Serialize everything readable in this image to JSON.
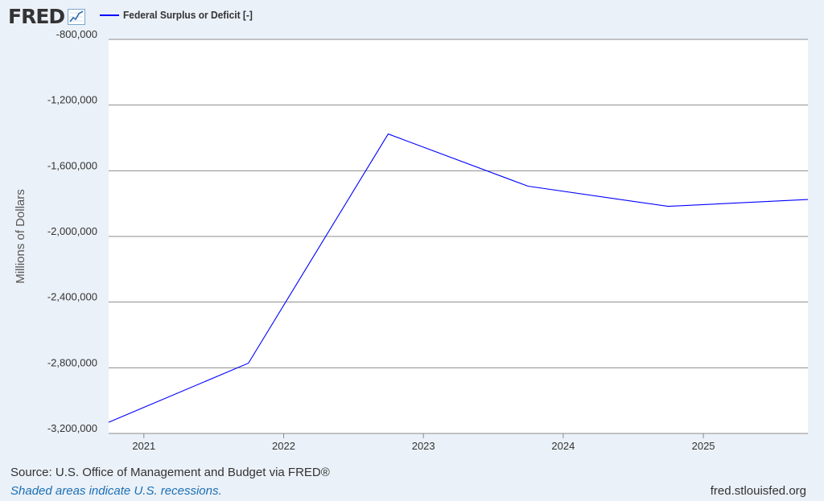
{
  "header": {
    "logo_text": "FRED",
    "logo_icon": "line-chart-icon",
    "legend_label": "Federal Surplus or Deficit [-]",
    "legend_color": "#0000ff"
  },
  "footer": {
    "source": "Source: U.S. Office of Management and Budget via FRED®",
    "note": "Shaded areas indicate U.S. recessions.",
    "site": "fred.stlouisfed.org"
  },
  "chart_data": {
    "type": "line",
    "title": "",
    "xlabel": "",
    "ylabel": "Millions of Dollars",
    "ylim": [
      -3200000,
      -800000
    ],
    "yticks": [
      -800000,
      -1200000,
      -1600000,
      -2000000,
      -2400000,
      -2800000,
      -3200000
    ],
    "ytick_labels": [
      "-800,000",
      "-1,200,000",
      "-1,600,000",
      "-2,000,000",
      "-2,400,000",
      "-2,800,000",
      "-3,200,000"
    ],
    "xlim": [
      "2020-10-01",
      "2025-10-01"
    ],
    "xticks": [
      "2021-01-01",
      "2022-01-01",
      "2023-01-01",
      "2024-01-01",
      "2025-01-01"
    ],
    "xtick_labels": [
      "2021",
      "2022",
      "2023",
      "2024",
      "2025"
    ],
    "grid": true,
    "series": [
      {
        "name": "Federal Surplus or Deficit [-]",
        "color": "#0000ff",
        "x": [
          "2020-10-01",
          "2021-10-01",
          "2022-10-01",
          "2023-10-01",
          "2024-10-01",
          "2025-10-01"
        ],
        "y": [
          -3132000,
          -2772000,
          -1376000,
          -1694000,
          -1817000,
          -1775000
        ]
      }
    ]
  }
}
